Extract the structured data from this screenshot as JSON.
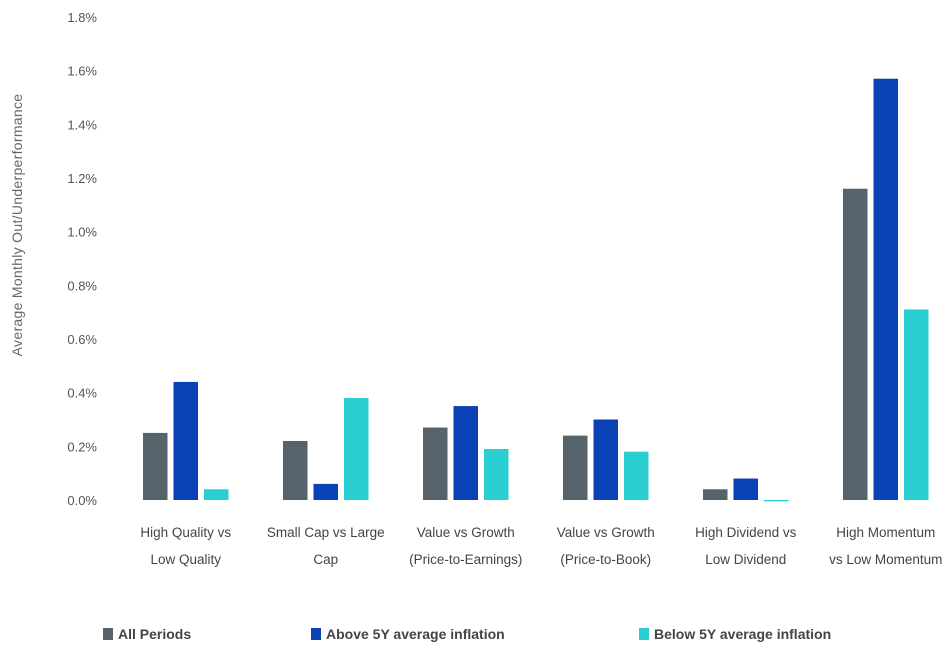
{
  "chart_data": {
    "type": "bar",
    "ylabel": "Average Monthly Out/Underperformance",
    "ylim": [
      0,
      1.8
    ],
    "yticks": [
      "0.0%",
      "0.2%",
      "0.4%",
      "0.6%",
      "0.8%",
      "1.0%",
      "1.2%",
      "1.4%",
      "1.6%",
      "1.8%"
    ],
    "ytick_values": [
      0,
      0.2,
      0.4,
      0.6,
      0.8,
      1.0,
      1.2,
      1.4,
      1.6,
      1.8
    ],
    "grid": false,
    "legend_position": "bottom",
    "categories": [
      [
        "High Quality vs",
        "Low Quality"
      ],
      [
        "Small Cap vs Large",
        "Cap"
      ],
      [
        "Value vs Growth",
        "(Price-to-Earnings)"
      ],
      [
        "Value vs Growth",
        "(Price-to-Book)"
      ],
      [
        "High Dividend vs",
        "Low Dividend"
      ],
      [
        "High Momentum",
        "vs Low Momentum"
      ]
    ],
    "series": [
      {
        "name": "All Periods",
        "color": "#56636b",
        "values": [
          0.25,
          0.22,
          0.27,
          0.24,
          0.04,
          1.16
        ]
      },
      {
        "name": "Above 5Y average inflation",
        "color": "#0a41b4",
        "values": [
          0.44,
          0.06,
          0.35,
          0.3,
          0.08,
          1.57
        ]
      },
      {
        "name": "Below 5Y average inflation",
        "color": "#2ccfd1",
        "values": [
          0.04,
          0.38,
          0.19,
          0.18,
          -0.005,
          0.71
        ]
      }
    ]
  }
}
